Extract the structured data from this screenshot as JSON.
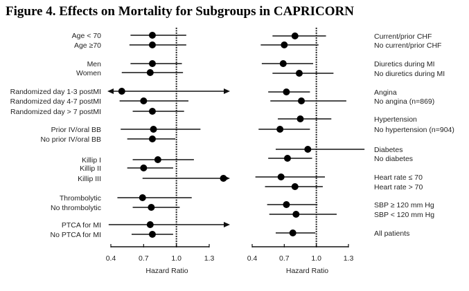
{
  "chart_data": [
    {
      "type": "forest",
      "title": "Figure 4. Effects on Mortality for Subgroups in CAPRICORN",
      "xlabel": "Hazard Ratio",
      "xticks": [
        "0.4",
        "0.7",
        "1.0",
        "1.3"
      ],
      "xlim": [
        0.4,
        1.3
      ],
      "reference_line": 1.0,
      "rows": [
        {
          "label": "Age < 70",
          "hr": 0.78,
          "lo": 0.58,
          "hi": 1.09
        },
        {
          "label": "Age ≥70",
          "hr": 0.78,
          "lo": 0.57,
          "hi": 1.09
        },
        {
          "label": "Men",
          "hr": 0.78,
          "lo": 0.58,
          "hi": 1.05
        },
        {
          "label": "Women",
          "hr": 0.76,
          "lo": 0.5,
          "hi": 1.06
        },
        {
          "label": "Randomized day 1-3 postMI",
          "hr": 0.5,
          "lo": 0.37,
          "hi": 1.49,
          "arrow_left": true,
          "arrow_right": true
        },
        {
          "label": "Randomized day 4-7 postMI",
          "hr": 0.7,
          "lo": 0.48,
          "hi": 1.11
        },
        {
          "label": "Randomized day > 7 postMI",
          "hr": 0.78,
          "lo": 0.6,
          "hi": 1.07
        },
        {
          "label": "Prior IV/oral BB",
          "hr": 0.79,
          "lo": 0.49,
          "hi": 1.22
        },
        {
          "label": "No prior IV/oral BB",
          "hr": 0.78,
          "lo": 0.55,
          "hi": 0.99
        },
        {
          "label": "Killip I",
          "hr": 0.83,
          "lo": 0.6,
          "hi": 1.16
        },
        {
          "label": "Killip II",
          "hr": 0.7,
          "lo": 0.55,
          "hi": 0.97
        },
        {
          "label": "Killip III",
          "hr": 1.43,
          "lo": 0.69,
          "hi": 1.49,
          "arrow_right": true
        },
        {
          "label": "Thrombolytic",
          "hr": 0.69,
          "lo": 0.46,
          "hi": 1.14
        },
        {
          "label": "No thrombolytic",
          "hr": 0.77,
          "lo": 0.6,
          "hi": 1.03
        },
        {
          "label": "PTCA for MI",
          "hr": 0.76,
          "lo": 0.38,
          "hi": 1.44,
          "arrow_right": true
        },
        {
          "label": "No PTCA for MI",
          "hr": 0.78,
          "lo": 0.59,
          "hi": 0.97
        }
      ]
    },
    {
      "type": "forest",
      "xlabel": "Hazard Ratio",
      "xticks": [
        "0.4",
        "0.7",
        "1.0",
        "1.3"
      ],
      "xlim": [
        0.4,
        1.3
      ],
      "reference_line": 1.0,
      "rows": [
        {
          "label": "Current/prior CHF",
          "hr": 0.8,
          "lo": 0.59,
          "hi": 1.09
        },
        {
          "label": "No current/prior CHF",
          "hr": 0.7,
          "lo": 0.48,
          "hi": 1.02
        },
        {
          "label": "Diuretics during MI",
          "hr": 0.69,
          "lo": 0.49,
          "hi": 0.97
        },
        {
          "label": "No diuretics during MI",
          "hr": 0.84,
          "lo": 0.59,
          "hi": 1.16
        },
        {
          "label": "Angina",
          "hr": 0.72,
          "lo": 0.55,
          "hi": 0.94
        },
        {
          "label": "No angina (n=869)",
          "hr": 0.86,
          "lo": 0.57,
          "hi": 1.28
        },
        {
          "label": "Hypertension",
          "hr": 0.85,
          "lo": 0.64,
          "hi": 1.14
        },
        {
          "label": "No hypertension (n=904)",
          "hr": 0.66,
          "lo": 0.46,
          "hi": 0.94
        },
        {
          "label": "Diabetes",
          "hr": 0.92,
          "lo": 0.62,
          "hi": 1.45
        },
        {
          "label": "No diabetes",
          "hr": 0.73,
          "lo": 0.55,
          "hi": 0.96
        },
        {
          "label": "Heart rate ≤ 70",
          "hr": 0.67,
          "lo": 0.43,
          "hi": 1.08
        },
        {
          "label": "Heart rate > 70",
          "hr": 0.8,
          "lo": 0.52,
          "hi": 1.06
        },
        {
          "label": "SBP ≥ 120 mm Hg",
          "hr": 0.72,
          "lo": 0.54,
          "hi": 1.01
        },
        {
          "label": "SBP < 120 mm Hg",
          "hr": 0.81,
          "lo": 0.56,
          "hi": 1.19
        },
        {
          "label": "All patients",
          "hr": 0.78,
          "lo": 0.62,
          "hi": 0.99
        }
      ]
    }
  ]
}
